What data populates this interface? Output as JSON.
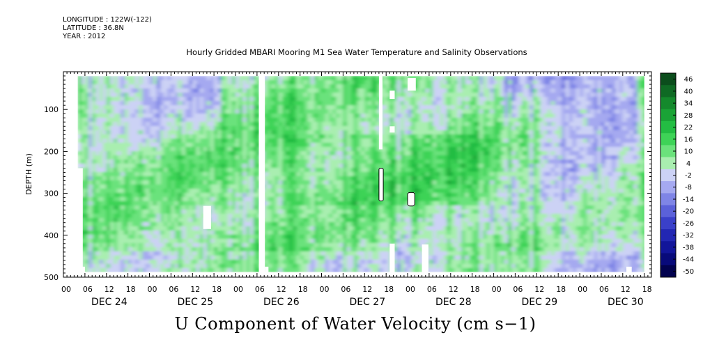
{
  "header": {
    "longitude": "LONGITUDE : 122W(-122)",
    "latitude": "LATITUDE : 36.8N",
    "year": "YEAR : 2012",
    "title": "Hourly Gridded MBARI Mooring M1 Sea Water Temperature and Salinity Observations"
  },
  "chart_data": {
    "type": "heatmap",
    "title": "Hourly Gridded MBARI Mooring M1 Sea Water Temperature and Salinity Observations",
    "variable_title": "U Component of Water Velocity (cm s-1)",
    "ylabel": "DEPTH (m)",
    "ylim": [
      500,
      10
    ],
    "y_inverted": true,
    "yticks": [
      100,
      200,
      300,
      400,
      500
    ],
    "xlim_hours": [
      0,
      164
    ],
    "xticks_hours": [
      "00",
      "06",
      "12",
      "18",
      "00",
      "06",
      "12",
      "18",
      "00",
      "06",
      "12",
      "18",
      "00",
      "06",
      "12",
      "18",
      "00",
      "06",
      "12",
      "18",
      "00",
      "06",
      "12",
      "18",
      "00",
      "06",
      "12",
      "18"
    ],
    "day_labels": [
      "DEC 24",
      "DEC 25",
      "DEC 26",
      "DEC 27",
      "DEC 28",
      "DEC 29",
      "DEC 30"
    ],
    "colorbar_levels": [
      46,
      40,
      34,
      28,
      22,
      16,
      10,
      4,
      -2,
      -8,
      -14,
      -20,
      -26,
      -32,
      -38,
      -44,
      -50
    ],
    "colorbar_colors": [
      "#0b4d1c",
      "#0f6a24",
      "#14892c",
      "#1aa336",
      "#23bd43",
      "#3ed357",
      "#6be27c",
      "#a9eeb0",
      "#ccd2f5",
      "#a5a9f0",
      "#7f85e6",
      "#5b61d9",
      "#3a40c9",
      "#2227b3",
      "#12159a",
      "#080a7a",
      "#02024f"
    ],
    "data_start": "DEC 24 ~04",
    "missing_columns": [
      "DEC 26 ~06-07"
    ],
    "dominant_pattern": "mostly positive (green) flow 4-28 cm/s at depth, weak negative (blue) patches near surface on DEC 24-25 and DEC 29-30"
  },
  "bottom_title": "U Component of Water Velocity (cm s−1)"
}
